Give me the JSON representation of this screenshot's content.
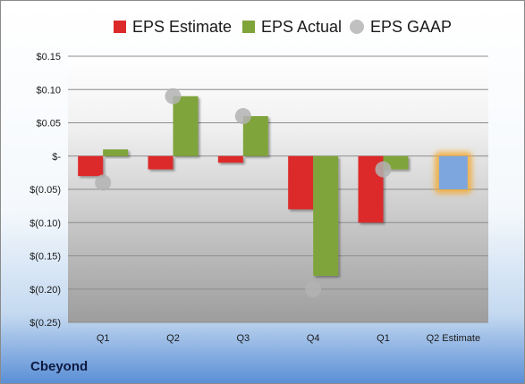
{
  "chart_data": {
    "type": "bar",
    "title": "",
    "categories": [
      "Q1",
      "Q2",
      "Q3",
      "Q4",
      "Q1",
      "Q2 Estimate"
    ],
    "series": [
      {
        "name": "EPS Estimate",
        "kind": "bar",
        "color": "#dc2a2a",
        "values": [
          -0.03,
          -0.02,
          -0.01,
          -0.08,
          -0.1,
          null
        ]
      },
      {
        "name": "EPS Actual",
        "kind": "bar",
        "color": "#7fa43a",
        "values": [
          0.01,
          0.09,
          0.06,
          -0.18,
          -0.02,
          -0.05
        ]
      },
      {
        "name": "EPS GAAP",
        "kind": "point",
        "color": "#b3b3b3",
        "values": [
          -0.04,
          0.09,
          0.06,
          -0.2,
          -0.02,
          null
        ]
      }
    ],
    "highlight": {
      "category": "Q2 Estimate",
      "color": "#7da6de",
      "glow": "#f5a623"
    },
    "ylim": [
      -0.25,
      0.15
    ],
    "yticks": [
      0.15,
      0.1,
      0.05,
      0,
      -0.05,
      -0.1,
      -0.15,
      -0.2,
      -0.25
    ],
    "ytick_labels": [
      "$0.15",
      "$0.10",
      "$0.05",
      "$-",
      "$(0.05)",
      "$(0.10)",
      "$(0.15)",
      "$(0.20)",
      "$(0.25)"
    ],
    "grid": true,
    "legend_position": "top",
    "xlabel": "",
    "ylabel": ""
  },
  "company": "Cbeyond"
}
